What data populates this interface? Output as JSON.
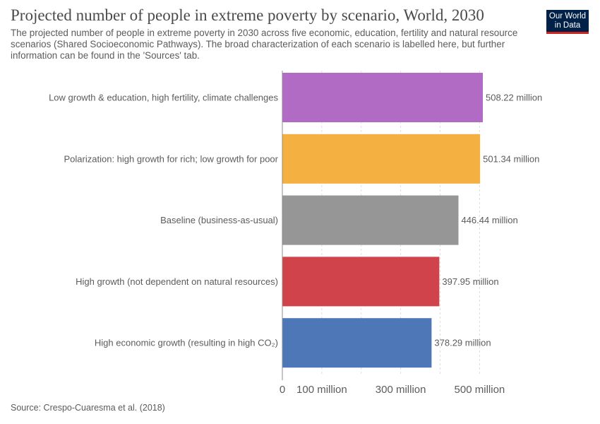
{
  "header": {
    "title": "Projected number of people in extreme poverty by scenario, World, 2030",
    "subtitle": "The projected number of people in extreme poverty in 2030 across five economic, education, fertility and natural resource scenarios (Shared Socioeconomic Pathways). The broad characterization of each scenario is labelled here, but further information can be found in the 'Sources' tab."
  },
  "logo": {
    "line1": "Our World",
    "line2": "in Data"
  },
  "footer": {
    "source": "Source: Crespo-Cuaresma et al. (2018)"
  },
  "chart_data": {
    "type": "bar",
    "orientation": "horizontal",
    "categories": [
      "Low growth & education, high fertility, climate challenges",
      "Polarization: high growth for rich; low growth for poor",
      "Baseline (business-as-usual)",
      "High growth (not dependent on natural resources)",
      "High economic growth (resulting in high CO₂)"
    ],
    "values": [
      508.22,
      501.34,
      446.44,
      397.95,
      378.29
    ],
    "value_labels": [
      "508.22 million",
      "501.34 million",
      "446.44 million",
      "397.95 million",
      "378.29 million"
    ],
    "colors": [
      "#b26bc4",
      "#f5b042",
      "#969696",
      "#d1434a",
      "#4e77b8"
    ],
    "xlim": [
      0,
      508.22
    ],
    "x_ticks": [
      0,
      100,
      200,
      300,
      400,
      500
    ],
    "x_tick_labels": [
      "0",
      "100 million",
      "",
      "300 million",
      "",
      "500 million"
    ],
    "grid": true,
    "legend": "none"
  }
}
